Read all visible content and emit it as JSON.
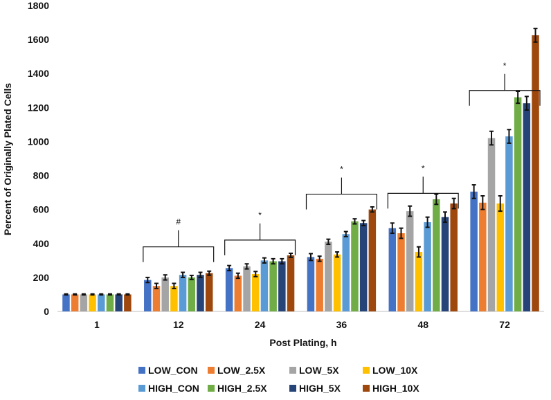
{
  "chart_data": {
    "type": "bar",
    "title": "",
    "xlabel": "Post Plating, h",
    "ylabel": "Percent of Originally  Plated Cells",
    "ylim": [
      0,
      1800
    ],
    "yticks": [
      0,
      200,
      400,
      600,
      800,
      1000,
      1200,
      1400,
      1600,
      1800
    ],
    "grid": false,
    "legend_position": "bottom",
    "categories": [
      "1",
      "12",
      "24",
      "36",
      "48",
      "72"
    ],
    "series": [
      {
        "name": "LOW_CON",
        "color": "#4472C4",
        "values": [
          100,
          185,
          255,
          320,
          490,
          705
        ],
        "errors": [
          3,
          15,
          15,
          20,
          30,
          40
        ]
      },
      {
        "name": "LOW_2.5X",
        "color": "#ED7D31",
        "values": [
          100,
          150,
          210,
          310,
          460,
          640
        ],
        "errors": [
          3,
          15,
          15,
          15,
          30,
          40
        ]
      },
      {
        "name": "LOW_5X",
        "color": "#A5A5A5",
        "values": [
          100,
          200,
          265,
          410,
          590,
          1020
        ],
        "errors": [
          3,
          15,
          15,
          15,
          30,
          40
        ]
      },
      {
        "name": "LOW_10X",
        "color": "#FFC000",
        "values": [
          100,
          150,
          220,
          335,
          350,
          635
        ],
        "errors": [
          3,
          15,
          15,
          15,
          30,
          45
        ]
      },
      {
        "name": "HIGH_CON",
        "color": "#5B9BD5",
        "values": [
          100,
          215,
          300,
          455,
          525,
          1030
        ],
        "errors": [
          3,
          15,
          15,
          15,
          30,
          40
        ]
      },
      {
        "name": "HIGH_2.5X",
        "color": "#70AD47",
        "values": [
          100,
          200,
          295,
          530,
          660,
          1260
        ],
        "errors": [
          3,
          12,
          15,
          15,
          30,
          35
        ]
      },
      {
        "name": "HIGH_5X",
        "color": "#264478",
        "values": [
          100,
          215,
          295,
          520,
          555,
          1225
        ],
        "errors": [
          3,
          15,
          15,
          15,
          30,
          40
        ]
      },
      {
        "name": "HIGH_10X",
        "color": "#9E480E",
        "values": [
          100,
          225,
          330,
          600,
          635,
          1625
        ],
        "errors": [
          3,
          12,
          12,
          15,
          30,
          40
        ]
      }
    ],
    "annotations": [
      {
        "category": "12",
        "symbol": "#",
        "level": 380
      },
      {
        "category": "24",
        "symbol": "*",
        "level": 420
      },
      {
        "category": "36",
        "symbol": "*",
        "level": 690
      },
      {
        "category": "48",
        "symbol": "*",
        "level": 695
      },
      {
        "category": "72",
        "symbol": "*",
        "level": 1300
      }
    ]
  }
}
